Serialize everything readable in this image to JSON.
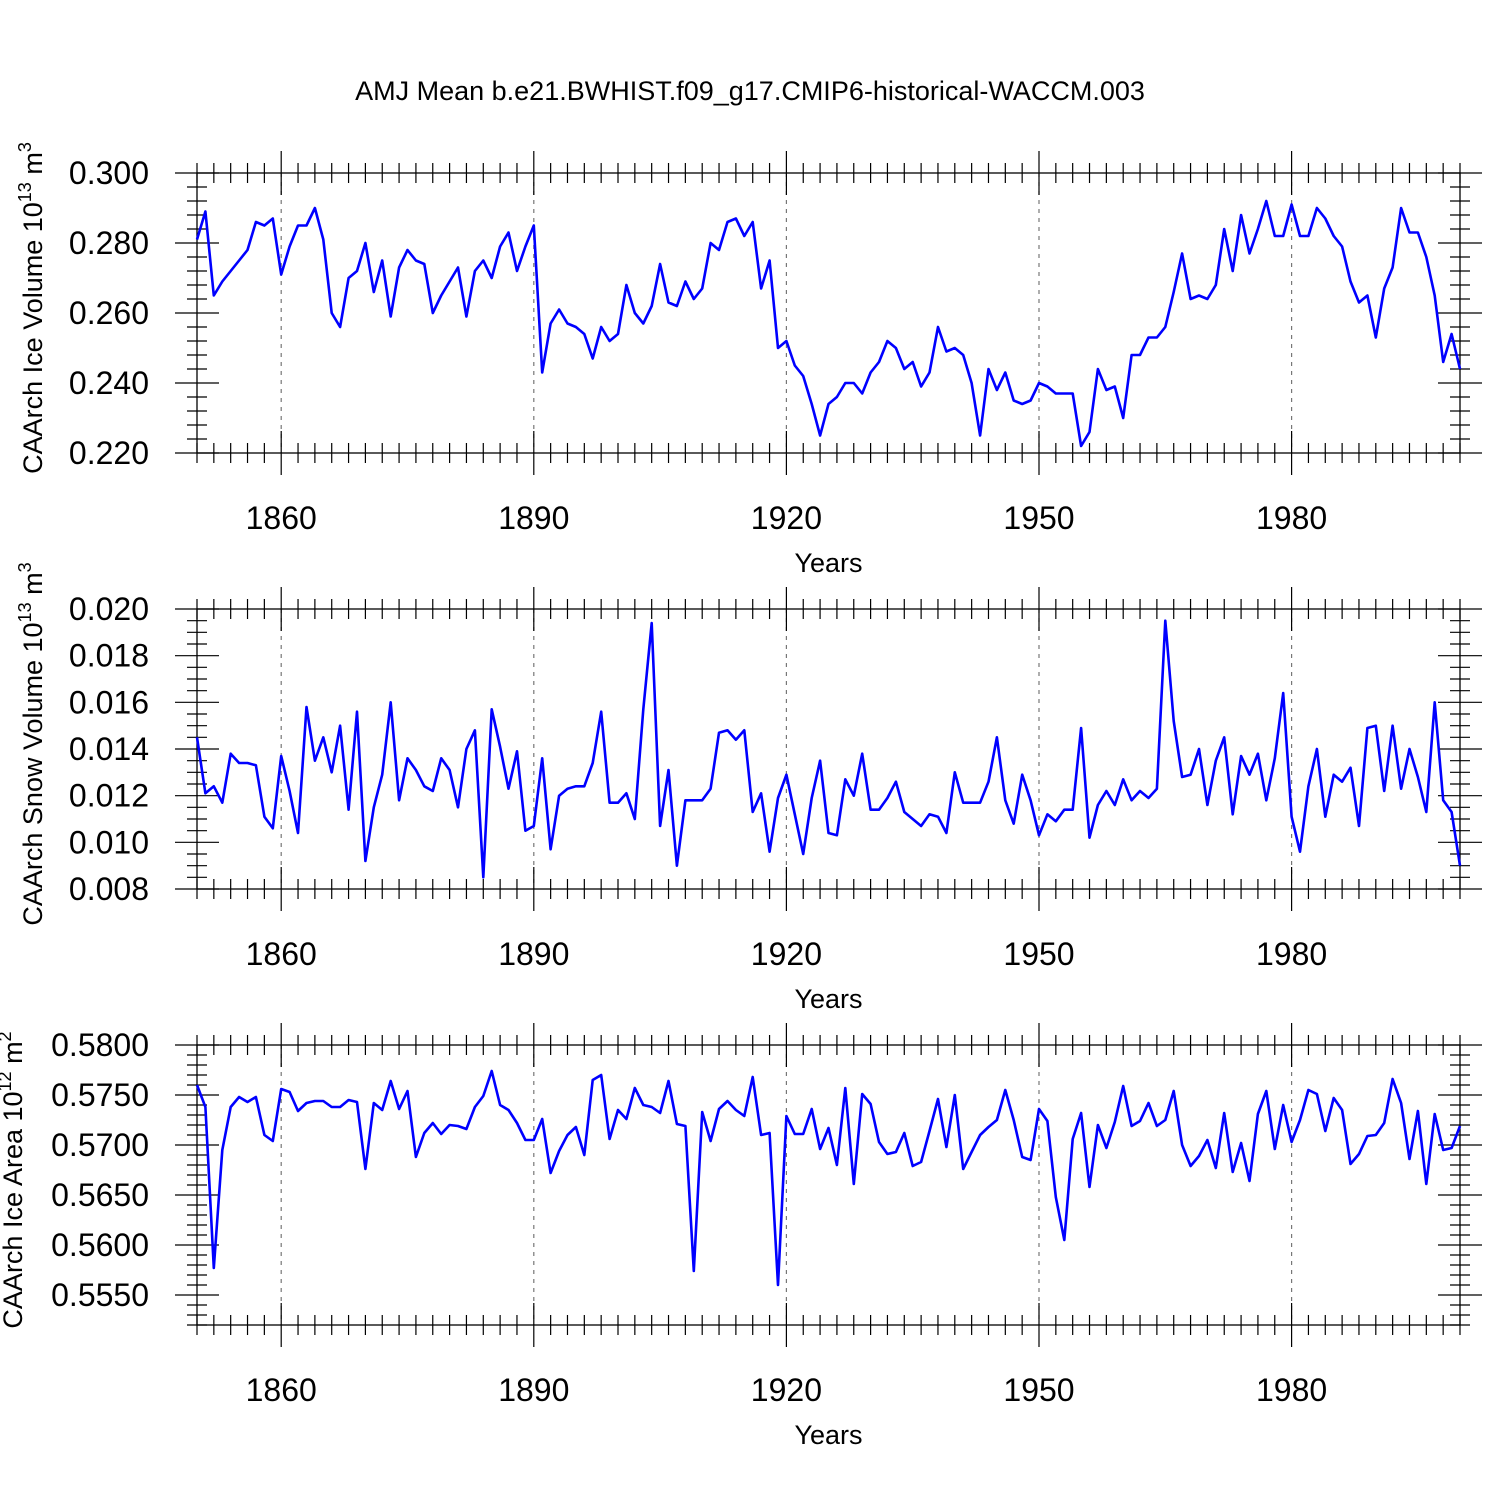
{
  "title": "AMJ Mean b.e21.BWHIST.f09_g17.CMIP6-historical-WACCM.003",
  "chart_data": [
    {
      "type": "line",
      "title": "AMJ Mean b.e21.BWHIST.f09_g17.CMIP6-historical-WACCM.003",
      "xlabel": "Years",
      "ylabel": "CAArch Ice Volume 10",
      "ylabel_exp": "13",
      "ylabel_unit": " m",
      "ylabel_unit_exp": "3",
      "xlim": [
        1850,
        2000
      ],
      "ylim": [
        0.22,
        0.3
      ],
      "xticks": [
        1860,
        1890,
        1920,
        1950,
        1980
      ],
      "xtick_labels": [
        "1860",
        "1890",
        "1920",
        "1950",
        "1980"
      ],
      "yticks": [
        0.22,
        0.24,
        0.26,
        0.28,
        0.3
      ],
      "ytick_labels": [
        "0.220",
        "0.240",
        "0.260",
        "0.280",
        "0.300"
      ],
      "y_minor_step": 0.004,
      "x_minor_step": 2,
      "grid": "vertical dashed at major x ticks",
      "x_start": 1850,
      "values": [
        0.281,
        0.289,
        0.265,
        0.269,
        0.272,
        0.275,
        0.278,
        0.286,
        0.285,
        0.287,
        0.271,
        0.279,
        0.285,
        0.285,
        0.29,
        0.281,
        0.26,
        0.256,
        0.27,
        0.272,
        0.28,
        0.266,
        0.275,
        0.259,
        0.273,
        0.278,
        0.275,
        0.274,
        0.26,
        0.265,
        0.269,
        0.273,
        0.259,
        0.272,
        0.275,
        0.27,
        0.279,
        0.283,
        0.272,
        0.279,
        0.285,
        0.243,
        0.257,
        0.261,
        0.257,
        0.256,
        0.254,
        0.247,
        0.256,
        0.252,
        0.254,
        0.268,
        0.26,
        0.257,
        0.262,
        0.274,
        0.263,
        0.262,
        0.269,
        0.264,
        0.267,
        0.28,
        0.278,
        0.286,
        0.287,
        0.282,
        0.286,
        0.267,
        0.275,
        0.25,
        0.252,
        0.245,
        0.242,
        0.234,
        0.225,
        0.234,
        0.236,
        0.24,
        0.24,
        0.237,
        0.243,
        0.246,
        0.252,
        0.25,
        0.244,
        0.246,
        0.239,
        0.243,
        0.256,
        0.249,
        0.25,
        0.248,
        0.24,
        0.225,
        0.244,
        0.238,
        0.243,
        0.235,
        0.234,
        0.235,
        0.24,
        0.239,
        0.237,
        0.237,
        0.237,
        0.222,
        0.226,
        0.244,
        0.238,
        0.239,
        0.23,
        0.248,
        0.248,
        0.253,
        0.253,
        0.256,
        0.266,
        0.277,
        0.264,
        0.265,
        0.264,
        0.268,
        0.284,
        0.272,
        0.288,
        0.277,
        0.284,
        0.292,
        0.282,
        0.282,
        0.291,
        0.282,
        0.282,
        0.29,
        0.287,
        0.282,
        0.279,
        0.269,
        0.263,
        0.265,
        0.253,
        0.267,
        0.273,
        0.29,
        0.283,
        0.283,
        0.276,
        0.265,
        0.246,
        0.254,
        0.244
      ]
    },
    {
      "type": "line",
      "xlabel": "Years",
      "ylabel": "CAArch Snow Volume 10",
      "ylabel_exp": "13",
      "ylabel_unit": " m",
      "ylabel_unit_exp": "3",
      "xlim": [
        1850,
        2000
      ],
      "ylim": [
        0.008,
        0.02
      ],
      "xticks": [
        1860,
        1890,
        1920,
        1950,
        1980
      ],
      "xtick_labels": [
        "1860",
        "1890",
        "1920",
        "1950",
        "1980"
      ],
      "yticks": [
        0.008,
        0.01,
        0.012,
        0.014,
        0.016,
        0.018,
        0.02
      ],
      "ytick_labels": [
        "0.008",
        "0.010",
        "0.012",
        "0.014",
        "0.016",
        "0.018",
        "0.020"
      ],
      "y_minor_step": 0.0005,
      "x_minor_step": 2,
      "grid": "vertical dashed at major x ticks",
      "x_start": 1850,
      "values": [
        0.0145,
        0.0121,
        0.0124,
        0.0117,
        0.0138,
        0.0134,
        0.0134,
        0.0133,
        0.0111,
        0.0106,
        0.0137,
        0.0122,
        0.0104,
        0.0158,
        0.0135,
        0.0145,
        0.013,
        0.015,
        0.0114,
        0.0156,
        0.0092,
        0.0115,
        0.0129,
        0.016,
        0.0118,
        0.0136,
        0.0131,
        0.0124,
        0.0122,
        0.0136,
        0.0131,
        0.0115,
        0.014,
        0.0148,
        0.0085,
        0.0157,
        0.0141,
        0.0123,
        0.0139,
        0.0105,
        0.0107,
        0.0136,
        0.0097,
        0.012,
        0.0123,
        0.0124,
        0.0124,
        0.0134,
        0.0156,
        0.0117,
        0.0117,
        0.0121,
        0.011,
        0.0157,
        0.0194,
        0.0107,
        0.0131,
        0.009,
        0.0118,
        0.0118,
        0.0118,
        0.0123,
        0.0147,
        0.0148,
        0.0144,
        0.0148,
        0.0113,
        0.0121,
        0.0096,
        0.0119,
        0.0129,
        0.0112,
        0.0095,
        0.0119,
        0.0135,
        0.0104,
        0.0103,
        0.0127,
        0.012,
        0.0138,
        0.0114,
        0.0114,
        0.0119,
        0.0126,
        0.0113,
        0.011,
        0.0107,
        0.0112,
        0.0111,
        0.0104,
        0.013,
        0.0117,
        0.0117,
        0.0117,
        0.0126,
        0.0145,
        0.0118,
        0.0108,
        0.0129,
        0.0118,
        0.0103,
        0.0112,
        0.0109,
        0.0114,
        0.0114,
        0.0149,
        0.0102,
        0.0116,
        0.0122,
        0.0116,
        0.0127,
        0.0118,
        0.0122,
        0.0119,
        0.0123,
        0.0195,
        0.0152,
        0.0128,
        0.0129,
        0.014,
        0.0116,
        0.0135,
        0.0145,
        0.0112,
        0.0137,
        0.0129,
        0.0138,
        0.0118,
        0.0136,
        0.0164,
        0.0111,
        0.0096,
        0.0124,
        0.014,
        0.0111,
        0.0129,
        0.0126,
        0.0132,
        0.0107,
        0.0149,
        0.015,
        0.0122,
        0.015,
        0.0123,
        0.014,
        0.0128,
        0.0113,
        0.016,
        0.0118,
        0.0113,
        0.009
      ]
    },
    {
      "type": "line",
      "xlabel": "Years",
      "ylabel": "CAArch Ice Area 10",
      "ylabel_exp": "12",
      "ylabel_unit": " m",
      "ylabel_unit_exp": "2",
      "xlim": [
        1850,
        2000
      ],
      "ylim": [
        0.552,
        0.58
      ],
      "xticks": [
        1860,
        1890,
        1920,
        1950,
        1980
      ],
      "xtick_labels": [
        "1860",
        "1890",
        "1920",
        "1950",
        "1980"
      ],
      "yticks": [
        0.555,
        0.56,
        0.565,
        0.57,
        0.575,
        0.58
      ],
      "ytick_labels": [
        "0.5550",
        "0.5600",
        "0.5650",
        "0.5700",
        "0.5750",
        "0.5800"
      ],
      "y_minor_step": 0.001,
      "x_minor_step": 2,
      "grid": "vertical dashed at major x ticks",
      "x_start": 1850,
      "values": [
        0.576,
        0.5738,
        0.5577,
        0.5695,
        0.5738,
        0.5748,
        0.5743,
        0.5748,
        0.571,
        0.5704,
        0.5756,
        0.5753,
        0.5734,
        0.5742,
        0.5744,
        0.5744,
        0.5738,
        0.5738,
        0.5745,
        0.5743,
        0.5676,
        0.5742,
        0.5735,
        0.5764,
        0.5736,
        0.5754,
        0.5688,
        0.5712,
        0.5722,
        0.5711,
        0.572,
        0.5719,
        0.5716,
        0.5738,
        0.5749,
        0.5774,
        0.574,
        0.5735,
        0.5722,
        0.5705,
        0.5705,
        0.5726,
        0.5672,
        0.5694,
        0.571,
        0.5718,
        0.569,
        0.5765,
        0.577,
        0.5706,
        0.5735,
        0.5726,
        0.5757,
        0.574,
        0.5738,
        0.5732,
        0.5764,
        0.5721,
        0.5719,
        0.5574,
        0.5733,
        0.5704,
        0.5736,
        0.5744,
        0.5735,
        0.5729,
        0.5768,
        0.571,
        0.5712,
        0.556,
        0.5729,
        0.5711,
        0.5711,
        0.5736,
        0.5696,
        0.5717,
        0.568,
        0.5757,
        0.5661,
        0.5751,
        0.5741,
        0.5703,
        0.5691,
        0.5693,
        0.5712,
        0.5679,
        0.5683,
        0.5714,
        0.5746,
        0.5698,
        0.575,
        0.5676,
        0.5693,
        0.571,
        0.5718,
        0.5725,
        0.5755,
        0.5725,
        0.5688,
        0.5685,
        0.5736,
        0.5724,
        0.5648,
        0.5605,
        0.5706,
        0.5732,
        0.5658,
        0.572,
        0.5697,
        0.5723,
        0.5759,
        0.5719,
        0.5724,
        0.5742,
        0.5719,
        0.5725,
        0.5754,
        0.57,
        0.5679,
        0.5689,
        0.5705,
        0.5677,
        0.5732,
        0.5673,
        0.5702,
        0.5664,
        0.5731,
        0.5754,
        0.5696,
        0.574,
        0.5703,
        0.5725,
        0.5755,
        0.5751,
        0.5714,
        0.5747,
        0.5735,
        0.5681,
        0.5691,
        0.5709,
        0.571,
        0.5722,
        0.5766,
        0.5742,
        0.5686,
        0.5734,
        0.5661,
        0.5731,
        0.5695,
        0.5697,
        0.5719
      ]
    }
  ]
}
